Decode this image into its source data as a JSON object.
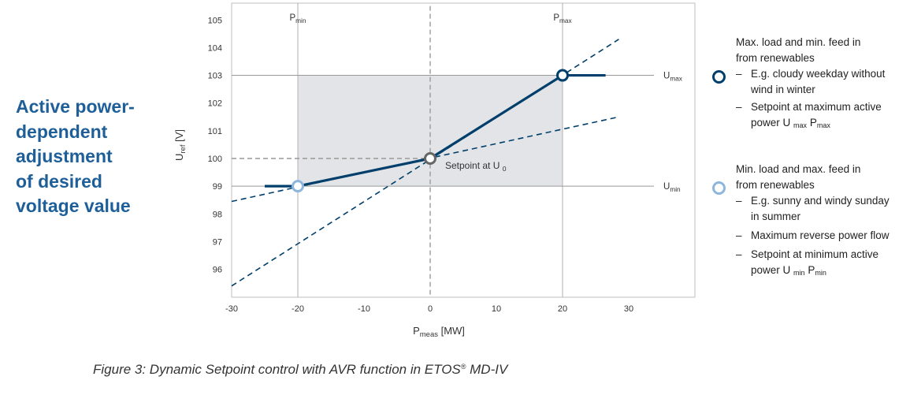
{
  "colors": {
    "dark_blue": "#003f6b",
    "light_blue": "#8db6dc",
    "gray_marker": "#666666",
    "title_blue": "#1f5f99",
    "shade": "#e3e4e7"
  },
  "side_title": [
    "Active power-",
    "dependent",
    "adjustment",
    "of desired",
    "voltage value"
  ],
  "chart_data": {
    "type": "line",
    "x_axis": {
      "label_main": "P",
      "label_sub": "meas",
      "label_unit": "[MW]",
      "range": [
        -30,
        40
      ],
      "ticks": [
        -30,
        -20,
        -10,
        0,
        10,
        20,
        30
      ]
    },
    "y_axis": {
      "label_main": "U",
      "label_sub": "ref",
      "label_unit": "[V]",
      "range": [
        95,
        105.5
      ],
      "ticks": [
        96,
        97,
        98,
        99,
        100,
        101,
        102,
        103,
        104,
        105
      ]
    },
    "vertical_refs": [
      {
        "x": -20,
        "label_main": "P",
        "label_sub": "min"
      },
      {
        "x": 20,
        "label_main": "P",
        "label_sub": "max"
      }
    ],
    "horizontal_refs": [
      {
        "y": 103,
        "label_main": "U",
        "label_sub": "max"
      },
      {
        "y": 99,
        "label_main": "U",
        "label_sub": "min"
      }
    ],
    "shaded_region": {
      "x": [
        -20,
        20
      ],
      "y": [
        99,
        103
      ]
    },
    "dashed_guides": [
      {
        "points": [
          [
            -30,
            100
          ],
          [
            0,
            100
          ]
        ]
      },
      {
        "points": [
          [
            0,
            105.5
          ],
          [
            0,
            95
          ]
        ]
      }
    ],
    "series": [
      {
        "name": "characteristic",
        "style": "solid",
        "points": [
          [
            -25,
            99
          ],
          [
            -20,
            99
          ],
          [
            0,
            100
          ],
          [
            20,
            103
          ],
          [
            26.5,
            103
          ]
        ]
      },
      {
        "name": "steep slope",
        "style": "dashed",
        "points": [
          [
            -30,
            95.4
          ],
          [
            28.5,
            104.3
          ]
        ]
      },
      {
        "name": "shallow slope",
        "style": "dashed",
        "points": [
          [
            -30,
            98.45
          ],
          [
            28.5,
            101.5
          ]
        ]
      }
    ],
    "markers": [
      {
        "x": 20,
        "y": 103,
        "kind": "max"
      },
      {
        "x": 0,
        "y": 100,
        "kind": "setpoint"
      },
      {
        "x": -20,
        "y": 99,
        "kind": "min"
      }
    ],
    "setpoint_label": {
      "text": "Setpoint at U",
      "sub": "0"
    }
  },
  "legend": {
    "max": {
      "heading": [
        "Max. load and min. feed in",
        "from renewables"
      ],
      "bullets": [
        {
          "lines": [
            "E.g. cloudy weekday without",
            "wind in winter"
          ]
        },
        {
          "lines": [
            "Setpoint at maximum active"
          ],
          "tail": {
            "pre": "power U",
            "sub1": "max",
            "mid": " P",
            "sub2": "max"
          }
        }
      ]
    },
    "min": {
      "heading": [
        "Min. load and max. feed in",
        "from renewables"
      ],
      "bullets": [
        {
          "lines": [
            "E.g. sunny and windy sunday",
            "in summer"
          ]
        },
        {
          "lines": [
            "Maximum reverse power flow"
          ]
        },
        {
          "lines": [
            "Setpoint at minimum active"
          ],
          "tail": {
            "pre": "power U",
            "sub1": "min",
            "mid": " P",
            "sub2": "min"
          }
        }
      ]
    },
    "dash": "–"
  },
  "caption": {
    "text": "Figure 3: Dynamic Setpoint control with AVR function in ETOS",
    "sup": "®",
    "tail": " MD-IV"
  }
}
